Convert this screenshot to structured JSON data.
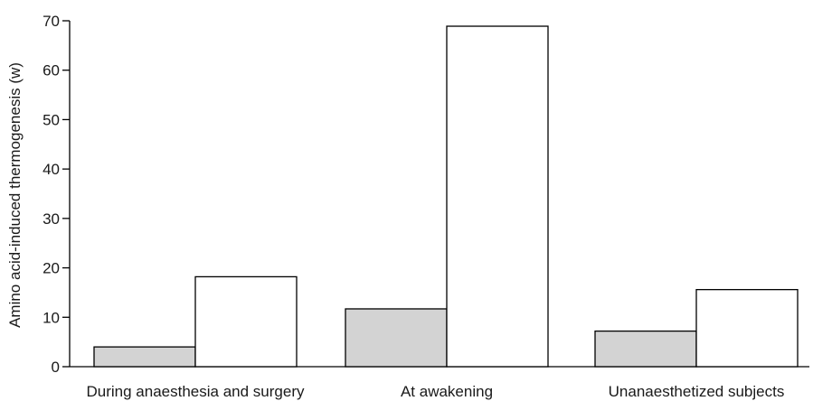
{
  "chart_data": {
    "type": "bar",
    "title": "",
    "xlabel": "",
    "ylabel": "Amino acid-induced thermogenesis (w)",
    "ylim": [
      0,
      70
    ],
    "yticks": [
      0,
      10,
      20,
      30,
      40,
      50,
      60,
      70
    ],
    "categories": [
      "During anaesthesia and surgery",
      "At awakening",
      "Unanaesthetized subjects"
    ],
    "series": [
      {
        "values": [
          4,
          11.7,
          7.2
        ],
        "color": "#d3d3d3"
      },
      {
        "values": [
          18.2,
          68.9,
          15.6
        ],
        "color": "#ffffff"
      }
    ],
    "grid": false,
    "legend": "none"
  }
}
